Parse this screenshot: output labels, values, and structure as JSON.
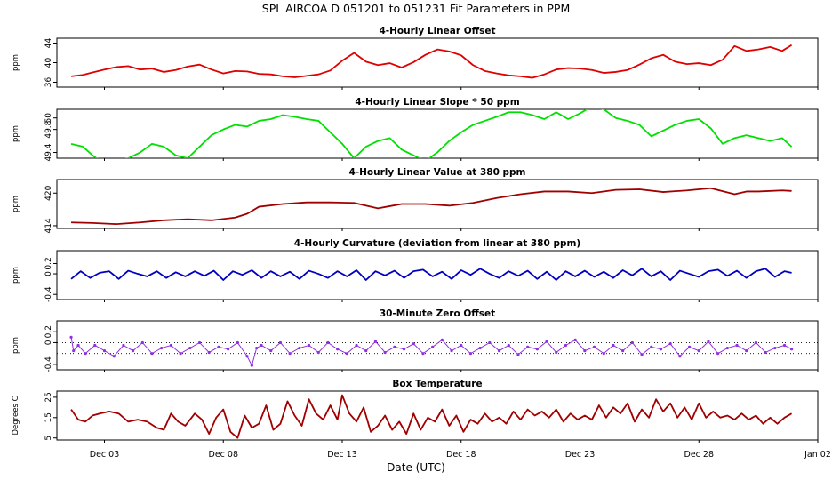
{
  "figure": {
    "title": "SPL   AIRCOA D   051201 to 051231   Fit Parameters in PPM",
    "xlabel": "Date (UTC)",
    "x_tick_labels": [
      "Dec 03",
      "Dec 08",
      "Dec 13",
      "Dec 18",
      "Dec 23",
      "Dec 28",
      "Jan 02"
    ]
  },
  "chart_data": [
    {
      "type": "line",
      "title": "4-Hourly Linear Offset",
      "ylabel": "ppm",
      "color": "#e00000",
      "ylim": [
        35,
        45
      ],
      "yticks": [
        36,
        40,
        44
      ],
      "x": [
        1.6,
        2.1,
        2.5,
        3.0,
        3.5,
        4.0,
        4.5,
        5.0,
        5.5,
        6.0,
        6.5,
        7.0,
        7.5,
        8.0,
        8.5,
        9.0,
        9.5,
        10.0,
        10.5,
        11.0,
        11.5,
        12.0,
        12.5,
        13.0,
        13.5,
        14.0,
        14.5,
        15.0,
        15.5,
        16.0,
        16.5,
        17.0,
        17.5,
        18.0,
        18.5,
        19.0,
        19.5,
        20.0,
        20.5,
        21.0,
        21.5,
        22.0,
        22.5,
        23.0,
        23.5,
        24.0,
        24.5,
        25.0,
        25.5,
        26.0,
        26.5,
        27.0,
        27.5,
        28.0,
        28.5,
        29.0,
        29.5,
        30.0,
        30.5,
        31.0,
        31.5,
        31.9
      ],
      "y": [
        37.2,
        37.5,
        38.0,
        38.6,
        39.1,
        39.3,
        38.6,
        38.8,
        38.1,
        38.5,
        39.2,
        39.6,
        38.6,
        37.8,
        38.3,
        38.2,
        37.7,
        37.6,
        37.2,
        37.0,
        37.3,
        37.6,
        38.4,
        40.4,
        42.0,
        40.2,
        39.5,
        39.9,
        39.0,
        40.1,
        41.6,
        42.7,
        42.3,
        41.5,
        39.5,
        38.3,
        37.8,
        37.4,
        37.2,
        36.9,
        37.6,
        38.6,
        38.9,
        38.8,
        38.5,
        37.9,
        38.1,
        38.5,
        39.6,
        40.9,
        41.6,
        40.2,
        39.7,
        39.9,
        39.5,
        40.6,
        43.4,
        42.4,
        42.7,
        43.2,
        42.4,
        43.6
      ]
    },
    {
      "type": "line",
      "title": "4-Hourly Linear Slope * 50 ppm",
      "ylabel": "ppm",
      "color": "#00e000",
      "ylim": [
        49.3,
        50.15
      ],
      "yticks": [
        49.4,
        49.8,
        50.0
      ],
      "x": [
        1.6,
        2.1,
        2.5,
        3.0,
        3.5,
        4.0,
        4.5,
        5.0,
        5.5,
        6.0,
        6.5,
        7.0,
        7.5,
        8.0,
        8.5,
        9.0,
        9.5,
        10.0,
        10.5,
        11.0,
        11.5,
        12.0,
        12.5,
        13.0,
        13.5,
        14.0,
        14.5,
        15.0,
        15.5,
        16.0,
        16.5,
        17.0,
        17.5,
        18.0,
        18.5,
        19.0,
        19.5,
        20.0,
        20.5,
        21.0,
        21.5,
        22.0,
        22.5,
        23.0,
        23.5,
        24.0,
        24.5,
        25.0,
        25.5,
        26.0,
        26.5,
        27.0,
        27.5,
        28.0,
        28.5,
        29.0,
        29.5,
        30.0,
        30.5,
        31.0,
        31.5,
        31.9
      ],
      "y": [
        49.55,
        49.5,
        49.35,
        49.2,
        49.25,
        49.3,
        49.4,
        49.55,
        49.5,
        49.35,
        49.3,
        49.5,
        49.7,
        49.8,
        49.88,
        49.85,
        49.95,
        49.98,
        50.05,
        50.02,
        49.98,
        49.95,
        49.75,
        49.55,
        49.3,
        49.5,
        49.6,
        49.65,
        49.45,
        49.35,
        49.25,
        49.4,
        49.6,
        49.75,
        49.88,
        49.95,
        50.02,
        50.1,
        50.1,
        50.05,
        49.98,
        50.1,
        49.98,
        50.08,
        50.2,
        50.15,
        50.0,
        49.95,
        49.88,
        49.68,
        49.78,
        49.88,
        49.95,
        49.98,
        49.82,
        49.55,
        49.65,
        49.7,
        49.65,
        49.6,
        49.65,
        49.5
      ]
    },
    {
      "type": "line",
      "title": "4-Hourly Linear Value at 380 ppm",
      "ylabel": "ppm",
      "color": "#a00000",
      "ylim": [
        413.5,
        422.5
      ],
      "yticks": [
        414,
        420
      ],
      "x": [
        1.6,
        2.5,
        3.5,
        4.5,
        5.5,
        6.5,
        7.5,
        8.5,
        9.0,
        9.5,
        10.5,
        11.5,
        12.5,
        13.5,
        14.5,
        15.0,
        15.5,
        16.5,
        17.5,
        18.5,
        19.5,
        20.5,
        21.5,
        22.5,
        23.5,
        24.5,
        25.5,
        26.5,
        27.5,
        28.5,
        29.5,
        30.0,
        30.5,
        31.5,
        31.9
      ],
      "y": [
        414.6,
        414.5,
        414.3,
        414.6,
        415.0,
        415.2,
        415.0,
        415.5,
        416.2,
        417.5,
        418.0,
        418.3,
        418.3,
        418.2,
        417.2,
        417.6,
        418.0,
        418.0,
        417.7,
        418.2,
        419.1,
        419.8,
        420.3,
        420.3,
        420.0,
        420.6,
        420.7,
        420.2,
        420.5,
        420.9,
        419.8,
        420.3,
        420.3,
        420.5,
        420.4
      ]
    },
    {
      "type": "line",
      "title": "4-Hourly Curvature (deviation from linear at 380 ppm)",
      "ylabel": "ppm",
      "color": "#0000c0",
      "ylim": [
        -0.5,
        0.45
      ],
      "yticks": [
        -0.4,
        0.0,
        0.2
      ],
      "x": [
        1.6,
        2.0,
        2.4,
        2.8,
        3.2,
        3.6,
        4.0,
        4.4,
        4.8,
        5.2,
        5.6,
        6.0,
        6.4,
        6.8,
        7.2,
        7.6,
        8.0,
        8.4,
        8.8,
        9.2,
        9.6,
        10.0,
        10.4,
        10.8,
        11.2,
        11.6,
        12.0,
        12.4,
        12.8,
        13.2,
        13.6,
        14.0,
        14.4,
        14.8,
        15.2,
        15.6,
        16.0,
        16.4,
        16.8,
        17.2,
        17.6,
        18.0,
        18.4,
        18.8,
        19.2,
        19.6,
        20.0,
        20.4,
        20.8,
        21.2,
        21.6,
        22.0,
        22.4,
        22.8,
        23.2,
        23.6,
        24.0,
        24.4,
        24.8,
        25.2,
        25.6,
        26.0,
        26.4,
        26.8,
        27.2,
        27.6,
        28.0,
        28.4,
        28.8,
        29.2,
        29.6,
        30.0,
        30.4,
        30.8,
        31.2,
        31.6,
        31.9
      ],
      "y": [
        -0.1,
        0.05,
        -0.08,
        0.02,
        0.05,
        -0.1,
        0.06,
        0.0,
        -0.05,
        0.05,
        -0.08,
        0.03,
        -0.05,
        0.05,
        -0.04,
        0.06,
        -0.12,
        0.05,
        -0.02,
        0.07,
        -0.08,
        0.05,
        -0.05,
        0.04,
        -0.1,
        0.06,
        0.0,
        -0.08,
        0.05,
        -0.05,
        0.07,
        -0.12,
        0.05,
        -0.03,
        0.06,
        -0.08,
        0.05,
        0.08,
        -0.05,
        0.04,
        -0.1,
        0.07,
        -0.02,
        0.1,
        0.0,
        -0.08,
        0.05,
        -0.04,
        0.06,
        -0.1,
        0.04,
        -0.12,
        0.05,
        -0.05,
        0.06,
        -0.06,
        0.04,
        -0.08,
        0.07,
        -0.03,
        0.1,
        -0.05,
        0.05,
        -0.12,
        0.06,
        0.0,
        -0.06,
        0.05,
        0.08,
        -0.04,
        0.06,
        -0.08,
        0.05,
        0.1,
        -0.06,
        0.05,
        0.02
      ]
    },
    {
      "type": "scatter",
      "title": "30-Minute Zero Offset",
      "ylabel": "ppm",
      "color": "#9030e0",
      "ylim": [
        -0.5,
        0.4
      ],
      "yticks": [
        -0.4,
        0.0,
        0.2
      ],
      "reference_lines": [
        0.0,
        -0.2
      ],
      "x": [
        1.6,
        1.7,
        1.9,
        2.2,
        2.6,
        3.0,
        3.4,
        3.8,
        4.2,
        4.6,
        5.0,
        5.4,
        5.8,
        6.2,
        6.6,
        7.0,
        7.4,
        7.8,
        8.2,
        8.6,
        9.0,
        9.2,
        9.4,
        9.6,
        10.0,
        10.4,
        10.8,
        11.2,
        11.6,
        12.0,
        12.4,
        12.8,
        13.2,
        13.6,
        14.0,
        14.4,
        14.8,
        15.2,
        15.6,
        16.0,
        16.4,
        16.8,
        17.2,
        17.6,
        18.0,
        18.4,
        18.8,
        19.2,
        19.6,
        20.0,
        20.4,
        20.8,
        21.2,
        21.6,
        22.0,
        22.4,
        22.8,
        23.2,
        23.6,
        24.0,
        24.4,
        24.8,
        25.2,
        25.6,
        26.0,
        26.4,
        26.8,
        27.2,
        27.6,
        28.0,
        28.4,
        28.8,
        29.2,
        29.6,
        30.0,
        30.4,
        30.8,
        31.2,
        31.6,
        31.9
      ],
      "y": [
        0.1,
        -0.15,
        -0.05,
        -0.2,
        -0.05,
        -0.15,
        -0.25,
        -0.05,
        -0.15,
        0.0,
        -0.2,
        -0.1,
        -0.05,
        -0.2,
        -0.1,
        0.0,
        -0.18,
        -0.08,
        -0.12,
        0.0,
        -0.25,
        -0.42,
        -0.1,
        -0.05,
        -0.15,
        0.0,
        -0.2,
        -0.1,
        -0.05,
        -0.18,
        0.0,
        -0.12,
        -0.2,
        -0.05,
        -0.15,
        0.02,
        -0.18,
        -0.08,
        -0.12,
        -0.02,
        -0.2,
        -0.08,
        0.05,
        -0.15,
        -0.05,
        -0.2,
        -0.1,
        0.0,
        -0.15,
        -0.05,
        -0.22,
        -0.08,
        -0.12,
        0.02,
        -0.18,
        -0.05,
        0.05,
        -0.15,
        -0.08,
        -0.2,
        -0.05,
        -0.15,
        0.0,
        -0.22,
        -0.08,
        -0.12,
        -0.02,
        -0.25,
        -0.08,
        -0.15,
        0.02,
        -0.2,
        -0.1,
        -0.05,
        -0.15,
        0.0,
        -0.18,
        -0.1,
        -0.05,
        -0.12
      ]
    },
    {
      "type": "line",
      "title": "Box Temperature",
      "ylabel": "Degrees C",
      "color": "#a00000",
      "ylim": [
        4,
        28
      ],
      "yticks": [
        5,
        15,
        25
      ],
      "x": [
        1.6,
        1.9,
        2.2,
        2.5,
        2.8,
        3.2,
        3.6,
        4.0,
        4.4,
        4.8,
        5.2,
        5.5,
        5.8,
        6.1,
        6.4,
        6.8,
        7.1,
        7.4,
        7.7,
        8.0,
        8.3,
        8.6,
        8.9,
        9.2,
        9.5,
        9.8,
        10.1,
        10.4,
        10.7,
        11.0,
        11.3,
        11.6,
        11.9,
        12.2,
        12.5,
        12.8,
        13.0,
        13.3,
        13.6,
        13.9,
        14.2,
        14.5,
        14.8,
        15.1,
        15.4,
        15.7,
        16.0,
        16.3,
        16.6,
        16.9,
        17.2,
        17.5,
        17.8,
        18.1,
        18.4,
        18.7,
        19.0,
        19.3,
        19.6,
        19.9,
        20.2,
        20.5,
        20.8,
        21.1,
        21.4,
        21.7,
        22.0,
        22.3,
        22.6,
        22.9,
        23.2,
        23.5,
        23.8,
        24.1,
        24.4,
        24.7,
        25.0,
        25.3,
        25.6,
        25.9,
        26.2,
        26.5,
        26.8,
        27.1,
        27.4,
        27.7,
        28.0,
        28.3,
        28.6,
        28.9,
        29.2,
        29.5,
        29.8,
        30.1,
        30.4,
        30.7,
        31.0,
        31.3,
        31.6,
        31.9
      ],
      "y": [
        19,
        14,
        13,
        16,
        17,
        18,
        17,
        13,
        14,
        13,
        10,
        9,
        17,
        13,
        11,
        17,
        14,
        7,
        15,
        19,
        8,
        5,
        16,
        10,
        12,
        21,
        9,
        12,
        23,
        16,
        11,
        24,
        17,
        14,
        21,
        14,
        26,
        17,
        13,
        20,
        8,
        11,
        16,
        9,
        13,
        7,
        17,
        9,
        15,
        13,
        19,
        11,
        16,
        8,
        14,
        12,
        17,
        13,
        15,
        12,
        18,
        14,
        19,
        16,
        18,
        15,
        19,
        13,
        17,
        14,
        16,
        14,
        21,
        15,
        20,
        17,
        22,
        13,
        19,
        15,
        24,
        18,
        22,
        15,
        20,
        14,
        22,
        15,
        18,
        15,
        16,
        14,
        17,
        14,
        16,
        12,
        15,
        12,
        15,
        17
      ]
    }
  ]
}
